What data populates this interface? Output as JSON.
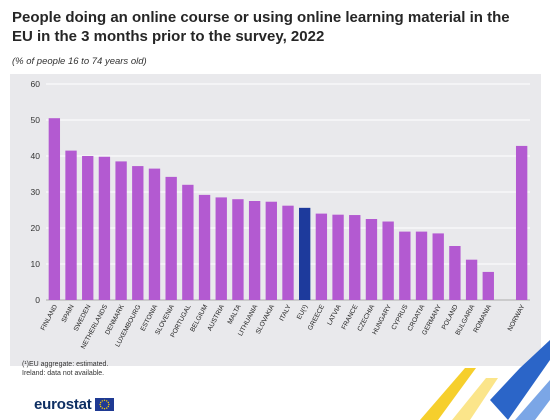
{
  "title": "People doing an online course or using online learning material in the EU in the 3 months prior to the survey, 2022",
  "subtitle": "(% of people 16 to 74 years old)",
  "footnote_line1": "(¹)EU aggregate: estimated.",
  "footnote_line2": "Ireland: data not available.",
  "logo_text": "eurostat",
  "colors": {
    "bar": "#b35ad1",
    "eu_bar": "#1d3a9c",
    "plot_bg": "#e9e9ec",
    "grid": "#ffffff",
    "logo": "#0e2f63"
  },
  "chart_data": {
    "type": "bar",
    "title": "People doing an online course or using online learning material in the EU in the 3 months prior to the survey, 2022",
    "subtitle": "(% of people 16 to 74 years old)",
    "xlabel": "",
    "ylabel": "",
    "ylim": [
      0,
      60
    ],
    "yticks": [
      0,
      10,
      20,
      30,
      40,
      50,
      60
    ],
    "grid": true,
    "categories": [
      "FINLAND",
      "SPAIN",
      "SWEDEN",
      "NETHERLANDS",
      "DENMARK",
      "LUXEMBOURG",
      "ESTONIA",
      "SLOVENIA",
      "PORTUGAL",
      "BELGIUM",
      "AUSTRIA",
      "MALTA",
      "LITHUANIA",
      "SLOVAKIA",
      "ITALY",
      "EU(¹)",
      "GREECE",
      "LATVIA",
      "FRANCE",
      "CZECHIA",
      "HUNGARY",
      "CYPRUS",
      "CROATIA",
      "GERMANY",
      "POLAND",
      "BULGARIA",
      "ROMANIA",
      "",
      "NORWAY"
    ],
    "values": [
      50.5,
      41.5,
      40.0,
      39.8,
      38.5,
      37.2,
      36.5,
      34.2,
      32.0,
      29.2,
      28.5,
      28.0,
      27.5,
      27.3,
      26.2,
      25.6,
      24.0,
      23.7,
      23.6,
      22.5,
      21.8,
      19.0,
      19.0,
      18.5,
      15.0,
      11.2,
      7.8,
      null,
      42.8
    ],
    "highlight": "EU(¹)"
  }
}
